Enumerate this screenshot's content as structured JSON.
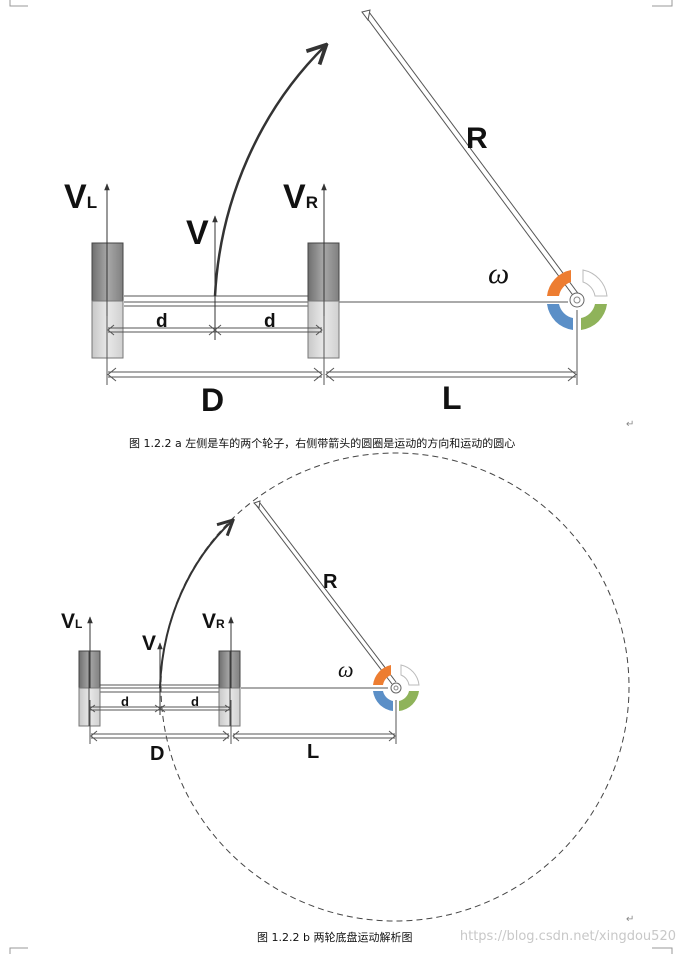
{
  "figure_a": {
    "label_vl_main": "V",
    "label_vl_sub": "L",
    "label_vr_main": "V",
    "label_vr_sub": "R",
    "label_v": "V",
    "label_r": "R",
    "label_omega": "ω",
    "label_d_left": "d",
    "label_d_right": "d",
    "label_D": "D",
    "label_L": "L",
    "caption": "图 1.2.2 a  左侧是车的两个轮子，右侧带箭头的圆圈是运动的方向和运动的圆心"
  },
  "figure_b": {
    "label_vl_main": "V",
    "label_vl_sub": "L",
    "label_vr_main": "V",
    "label_vr_sub": "R",
    "label_v": "V",
    "label_r": "R",
    "label_omega": "ω",
    "label_d_left": "d",
    "label_d_right": "d",
    "label_D": "D",
    "label_L": "L",
    "caption": "图 1.2.2 b  两轮底盘运动解析图"
  },
  "watermark": "https://blog.csdn.net/xingdou520",
  "paragraph_mark": "↵",
  "colors": {
    "wheel": "#9a9a9a",
    "orange": "#ed7d31",
    "green": "#8fb35a",
    "blue": "#5b8fc7"
  }
}
